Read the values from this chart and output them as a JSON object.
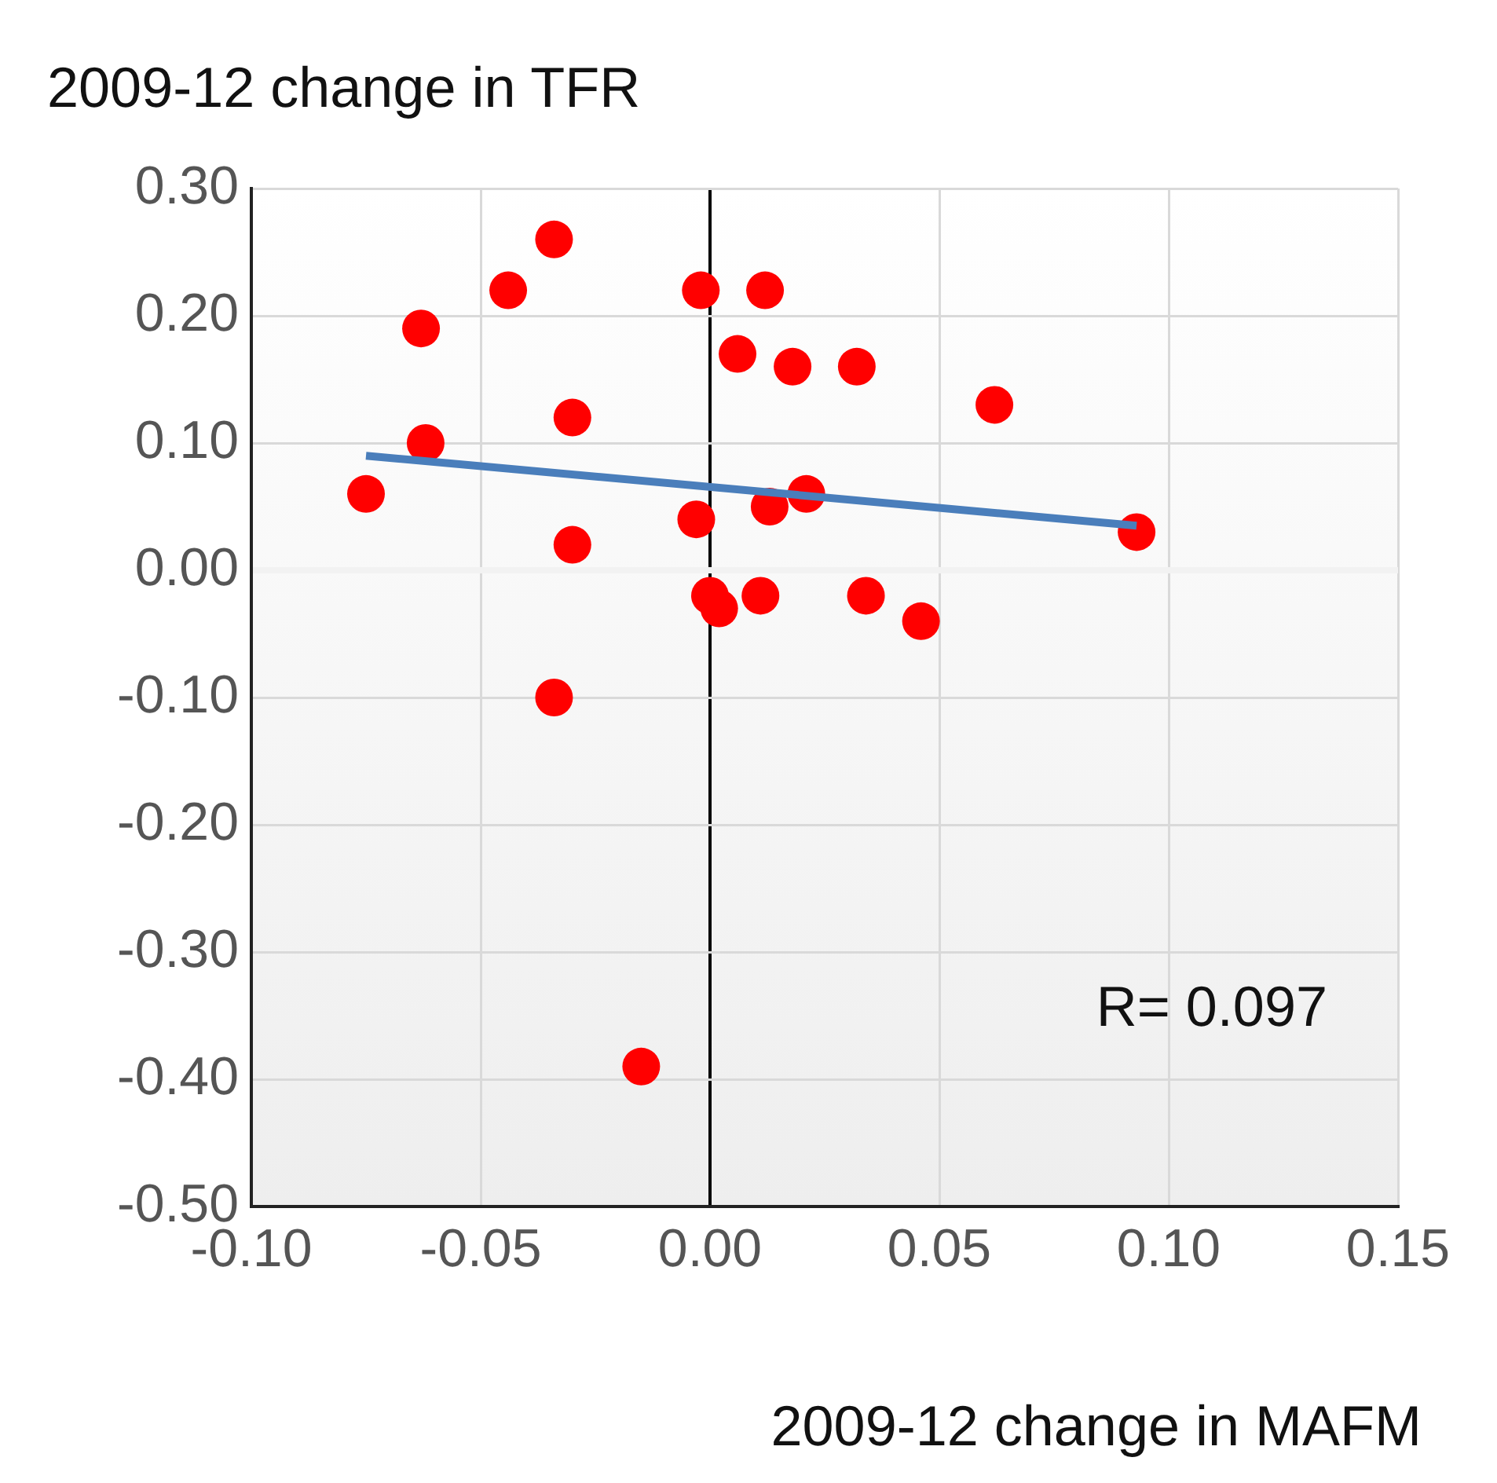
{
  "chart_data": {
    "type": "scatter",
    "ylabel": "2009-12 change in TFR",
    "xlabel": "2009-12 change in MAFM",
    "x": [
      -0.075,
      -0.063,
      -0.062,
      -0.044,
      -0.034,
      -0.03,
      -0.03,
      -0.034,
      -0.015,
      -0.002,
      -0.003,
      0.0,
      0.002,
      0.006,
      0.012,
      0.011,
      0.013,
      0.018,
      0.021,
      0.032,
      0.034,
      0.046,
      0.062,
      0.093
    ],
    "series": [
      {
        "color": "#ff0000",
        "values": [
          0.06,
          0.19,
          0.1,
          0.22,
          0.26,
          0.12,
          0.02,
          -0.1,
          -0.39,
          0.22,
          0.04,
          -0.02,
          -0.03,
          0.17,
          0.22,
          -0.02,
          0.05,
          0.16,
          0.06,
          0.16,
          -0.02,
          -0.04,
          0.13,
          0.03
        ]
      },
      {
        "type": "line",
        "color": "#4a7ebb",
        "x": [
          -0.075,
          0.093
        ],
        "values": [
          0.09,
          0.035
        ],
        "marker": "none"
      }
    ],
    "xlim": [
      -0.1,
      0.15
    ],
    "xticks": [
      {
        "value": -0.1,
        "label": "-0.10"
      },
      {
        "value": -0.05,
        "label": "-0.05"
      },
      {
        "value": 0,
        "label": "0.00"
      },
      {
        "value": 0.05,
        "label": "0.05"
      },
      {
        "value": 0.1,
        "label": "0.10"
      },
      {
        "value": 0.15,
        "label": "0.15"
      }
    ],
    "ylim": [
      -0.5,
      0.3
    ],
    "yticks": [
      {
        "value": -0.5,
        "label": "-0.50"
      },
      {
        "value": -0.4,
        "label": "-0.40"
      },
      {
        "value": -0.3,
        "label": "-0.30"
      },
      {
        "value": -0.2,
        "label": "-0.20"
      },
      {
        "value": -0.1,
        "label": "-0.10"
      },
      {
        "value": 0,
        "label": "0.00"
      },
      {
        "value": 0.1,
        "label": "0.10"
      },
      {
        "value": 0.2,
        "label": "0.20"
      },
      {
        "value": 0.3,
        "label": "0.30"
      }
    ],
    "grid": true,
    "legend": false,
    "marker": "circle",
    "annotations": [
      "R= 0.097"
    ]
  }
}
